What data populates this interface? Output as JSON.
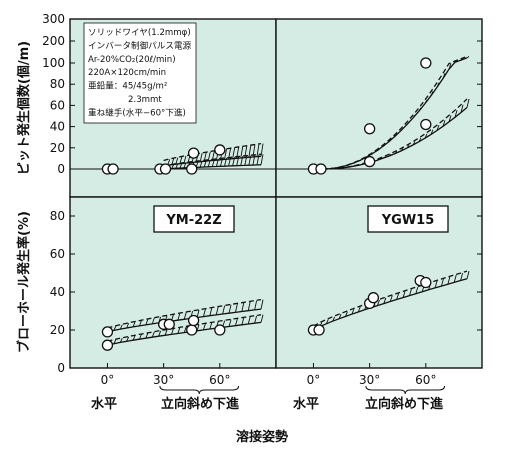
{
  "chart_data": [
    {
      "type": "scatter",
      "panel": "top-left",
      "ylabel": "ピット発生個数(個/m)",
      "ylim": [
        -20,
        300
      ],
      "yticks": [
        0,
        20,
        40,
        60,
        80,
        100,
        200,
        300
      ],
      "xlim": [
        -20,
        90
      ],
      "conditions": [
        "ソリッドワイヤ(1.2mmφ)",
        "インバータ制御パルス電源",
        "Ar-20%CO₂(20ℓ/min)",
        "220A×120cm/min",
        "亜鉛量：45/45g/m²",
        "2.3mmt",
        "重ね継手(水平−60°下進)"
      ],
      "points": [
        {
          "x": 0,
          "y": 0
        },
        {
          "x": 3,
          "y": 0
        },
        {
          "x": 28,
          "y": 0
        },
        {
          "x": 31,
          "y": 0
        },
        {
          "x": 45,
          "y": 0
        },
        {
          "x": 46,
          "y": 15
        },
        {
          "x": 60,
          "y": 18
        }
      ],
      "bands": [
        {
          "x": [
            30,
            82
          ],
          "lower": [
            3,
            12
          ],
          "upper": [
            8,
            24
          ]
        },
        {
          "x": [
            30,
            82
          ],
          "lower": [
            0,
            4
          ],
          "upper": [
            3,
            14
          ]
        }
      ]
    },
    {
      "type": "scatter",
      "panel": "top-right",
      "ylim": [
        -20,
        300
      ],
      "xlim": [
        -20,
        90
      ],
      "points": [
        {
          "x": 0,
          "y": 0
        },
        {
          "x": 4,
          "y": 0
        },
        {
          "x": 30,
          "y": 38
        },
        {
          "x": 30,
          "y": 7
        },
        {
          "x": 60,
          "y": 100
        },
        {
          "x": 60,
          "y": 42
        }
      ],
      "bands": [
        {
          "x": [
            5,
            82
          ],
          "lower": [
            0,
            123
          ],
          "upper": [
            0,
            130
          ]
        },
        {
          "x": [
            5,
            82
          ],
          "lower": [
            0,
            58
          ],
          "upper": [
            0,
            66
          ]
        }
      ]
    },
    {
      "type": "scatter",
      "panel": "bottom-left",
      "label": "YM-22Z",
      "ylabel": "ブローホール発生率(%)",
      "ylim": [
        0,
        90
      ],
      "yticks": [
        0,
        20,
        40,
        60,
        80
      ],
      "xlim": [
        -20,
        90
      ],
      "xtick_labels": [
        "0°",
        "30°",
        "60°"
      ],
      "xlabel_flat": "水平",
      "xlabel_down": "立向斜め下進",
      "points": [
        {
          "x": 0,
          "y": 19
        },
        {
          "x": 0,
          "y": 12
        },
        {
          "x": 30,
          "y": 23
        },
        {
          "x": 33,
          "y": 23
        },
        {
          "x": 45,
          "y": 20
        },
        {
          "x": 46,
          "y": 25
        },
        {
          "x": 60,
          "y": 20
        }
      ],
      "bands": [
        {
          "x": [
            0,
            82
          ],
          "lower": [
            19,
            31
          ],
          "upper": [
            21,
            36
          ]
        },
        {
          "x": [
            0,
            82
          ],
          "lower": [
            12,
            24
          ],
          "upper": [
            14,
            28
          ]
        }
      ]
    },
    {
      "type": "scatter",
      "panel": "bottom-right",
      "label": "YGW15",
      "ylim": [
        0,
        90
      ],
      "xlim": [
        -20,
        90
      ],
      "xtick_labels": [
        "0°",
        "30°",
        "60°"
      ],
      "xlabel_flat": "水平",
      "xlabel_down": "立向斜め下進",
      "points": [
        {
          "x": 0,
          "y": 20
        },
        {
          "x": 3,
          "y": 20
        },
        {
          "x": 30,
          "y": 34
        },
        {
          "x": 32,
          "y": 37
        },
        {
          "x": 57,
          "y": 46
        },
        {
          "x": 60,
          "y": 45
        }
      ],
      "bands": [
        {
          "x": [
            0,
            82
          ],
          "lower": [
            20,
            47
          ],
          "upper": [
            22,
            51
          ]
        }
      ]
    }
  ],
  "xlabel": "溶接姿勢",
  "colors": {
    "background": "#d4ece4",
    "ink": "#111111"
  }
}
